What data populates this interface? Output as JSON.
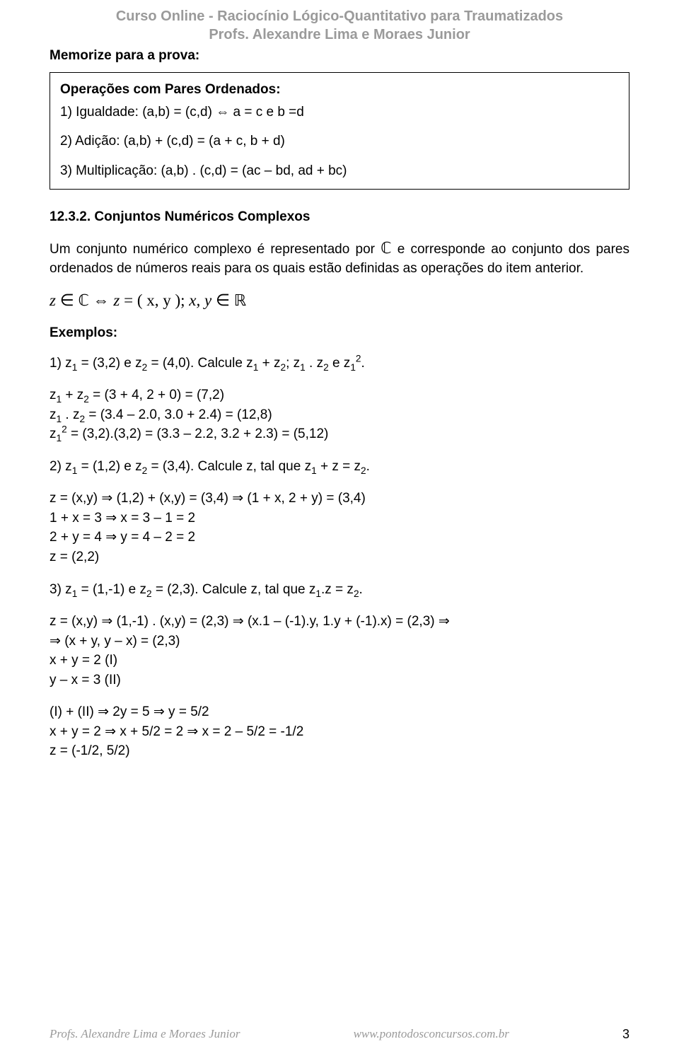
{
  "header": {
    "line1": "Curso Online - Raciocínio Lógico-Quantitativo para Traumatizados",
    "line2": "Profs. Alexandre Lima e Moraes Junior"
  },
  "memorize": "Memorize para a prova:",
  "box": {
    "title": "Operações com Pares Ordenados:",
    "l1": "1) Igualdade: (a,b) = (c,d) ⇔ a = c e b =d",
    "l2": "2) Adição: (a,b) + (c,d) = (a + c, b + d)",
    "l3": "3) Multiplicação: (a,b) . (c,d) = (ac – bd, ad + bc)"
  },
  "section_num": "12.3.2. Conjuntos Numéricos Complexos",
  "intro_para_before": "Um conjunto numérico complexo é representado por ",
  "intro_para_after": " e corresponde ao conjunto dos pares ordenados de números reais para os quais estão definidas as operações do item anterior.",
  "symbols": {
    "C": "ℂ",
    "R": "ℝ",
    "in": "∈",
    "iff": "⇔",
    "imp": "⇒"
  },
  "math_def": {
    "z": "z",
    "eq": "=",
    "paren": "( x, y );",
    "xy": "x, y"
  },
  "exemplos_title": "Exemplos:",
  "ex1": {
    "head_a": "1) z",
    "head_b": " = (3,2) e z",
    "head_c": " = (4,0). Calcule z",
    "head_d": " + z",
    "head_e": "; z",
    "head_f": " . z",
    "head_g": " e z",
    "head_h": ".",
    "l1a": "z",
    "l1b": " + z",
    "l1c": " = (3 + 4, 2 + 0) = (7,2)",
    "l2a": "z",
    "l2b": " . z",
    "l2c": " = (3.4 – 2.0, 3.0 + 2.4) = (12,8)",
    "l3a": "z",
    "l3b": " = (3,2).(3,2) = (3.3 – 2.2, 3.2 + 2.3) = (5,12)"
  },
  "ex2": {
    "head_a": "2) z",
    "head_b": " = (1,2) e z",
    "head_c": " = (3,4). Calcule z, tal que z",
    "head_d": " + z = z",
    "head_e": ".",
    "l1a": "z = (x,y) ",
    "l1b": " (1,2) + (x,y) = (3,4) ",
    "l1c": " (1 + x, 2 + y) = (3,4)",
    "l2a": "1 + x = 3 ",
    "l2b": " x = 3 – 1 = 2",
    "l3a": "2 + y = 4 ",
    "l3b": " y = 4 – 2 = 2",
    "l4": "z = (2,2)"
  },
  "ex3": {
    "head_a": "3) z",
    "head_b": " = (1,-1) e z",
    "head_c": " = (2,3). Calcule z, tal que z",
    "head_d": ".z = z",
    "head_e": ".",
    "l1a": "z = (x,y) ",
    "l1b": " (1,-1) . (x,y) = (2,3) ",
    "l1c": " (x.1 – (-1).y, 1.y + (-1).x) = (2,3) ",
    "l2a": " (x + y, y – x) = (2,3)",
    "l3": "x + y = 2 (I)",
    "l4": "y – x = 3 (II)",
    "l5a": "(I) + (II) ",
    "l5b": " 2y = 5 ",
    "l5c": " y = 5/2",
    "l6a": "x + y = 2 ",
    "l6b": " x + 5/2 = 2 ",
    "l6c": " x = 2 – 5/2 = -1/2",
    "l7": "z = (-1/2, 5/2)"
  },
  "footer": {
    "left": "Profs. Alexandre Lima e Moraes Junior",
    "center": "www.pontodosconcursos.com.br",
    "page": "3"
  }
}
